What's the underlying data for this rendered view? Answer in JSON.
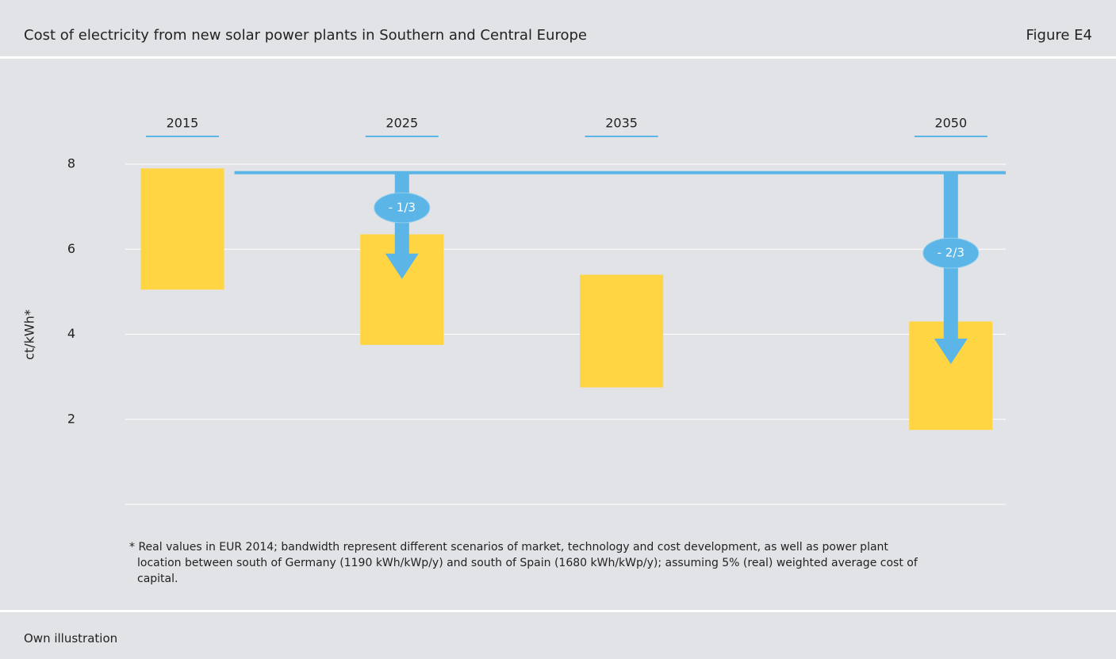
{
  "header": {
    "title": "Cost of electricity from new solar power plants in Southern and Central Europe",
    "figure": "Figure E4"
  },
  "chart_data": {
    "type": "floating_bar",
    "y_label": "ct/kWh*",
    "x": [
      2015,
      2025,
      2035,
      2050
    ],
    "xlim": [
      2012.4,
      2052.5
    ],
    "xticks": [
      2015,
      2025,
      2035,
      2050
    ],
    "high": [
      7.9,
      6.35,
      5.4,
      4.3
    ],
    "low": [
      5.05,
      3.75,
      2.75,
      1.75
    ],
    "color": "#ffd544",
    "ylim": [
      0,
      8
    ],
    "yticks": [
      2,
      4,
      6,
      8
    ],
    "grid": true,
    "reference_line": 7.8,
    "annotation_color": "#5bb5e6",
    "annotations": [
      {
        "x": 2025,
        "from": 7.8,
        "to": 5.3,
        "label": "- 1/3"
      },
      {
        "x": 2050,
        "from": 7.8,
        "to": 3.3,
        "label": "- 2/3"
      }
    ],
    "footnote": "* Real values in EUR 2014; bandwidth represent different scenarios of market, technology and cost development, as well as power plant location between south of Germany (1190 kWh/kWp/y) and south of Spain (1680 kWh/kWp/y); assuming 5% (real) weighted average cost of capital."
  },
  "footer": {
    "source": "Own illustration"
  }
}
